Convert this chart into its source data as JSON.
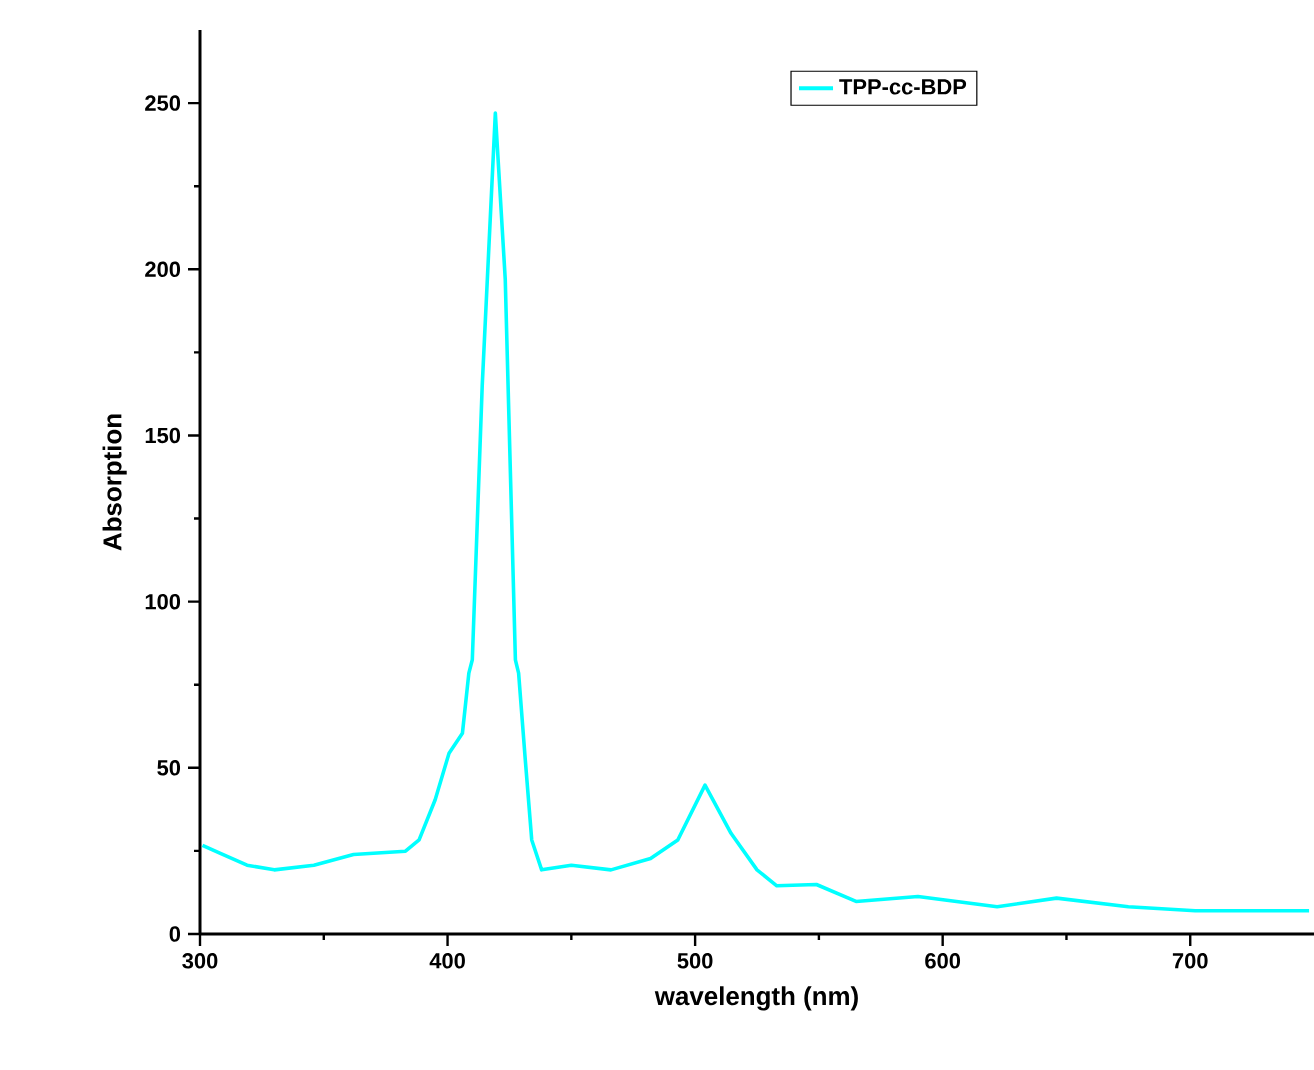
{
  "chart_data": {
    "type": "line",
    "xlabel": "wavelength (nm)",
    "ylabel": "Absorption",
    "xlim": [
      300,
      750
    ],
    "xticks": [
      300,
      400,
      500,
      600,
      700
    ],
    "ylim": [
      0,
      272
    ],
    "yticks": [
      0,
      50,
      100,
      150,
      200,
      250
    ],
    "grid": false,
    "legend": "top right",
    "marker": "none",
    "line_style": "solid",
    "series": [
      {
        "name": "TPP-cc-BDP",
        "color": "#00ffff",
        "x": [
          301,
          308,
          319,
          330,
          346,
          362,
          383,
          388.5,
          395,
          400.6,
          406,
          408.6,
          410,
          414,
          419.3,
          423.3,
          427.4,
          428.7,
          431.4,
          434,
          438,
          450,
          466,
          482,
          493,
          504,
          514.5,
          525,
          533,
          549,
          565,
          590,
          622,
          646,
          675,
          702,
          748
        ],
        "values": [
          26.7,
          24.3,
          20.7,
          19.3,
          20.7,
          23.9,
          24.9,
          28.3,
          40.4,
          54.4,
          60.4,
          78.5,
          82.5,
          165,
          247,
          197,
          82.5,
          78.5,
          52.4,
          28.3,
          19.3,
          20.7,
          19.3,
          22.7,
          28.3,
          44.8,
          30.3,
          19.3,
          14.5,
          14.9,
          9.8,
          11.3,
          8.2,
          10.8,
          8.2,
          7,
          7
        ]
      }
    ]
  }
}
